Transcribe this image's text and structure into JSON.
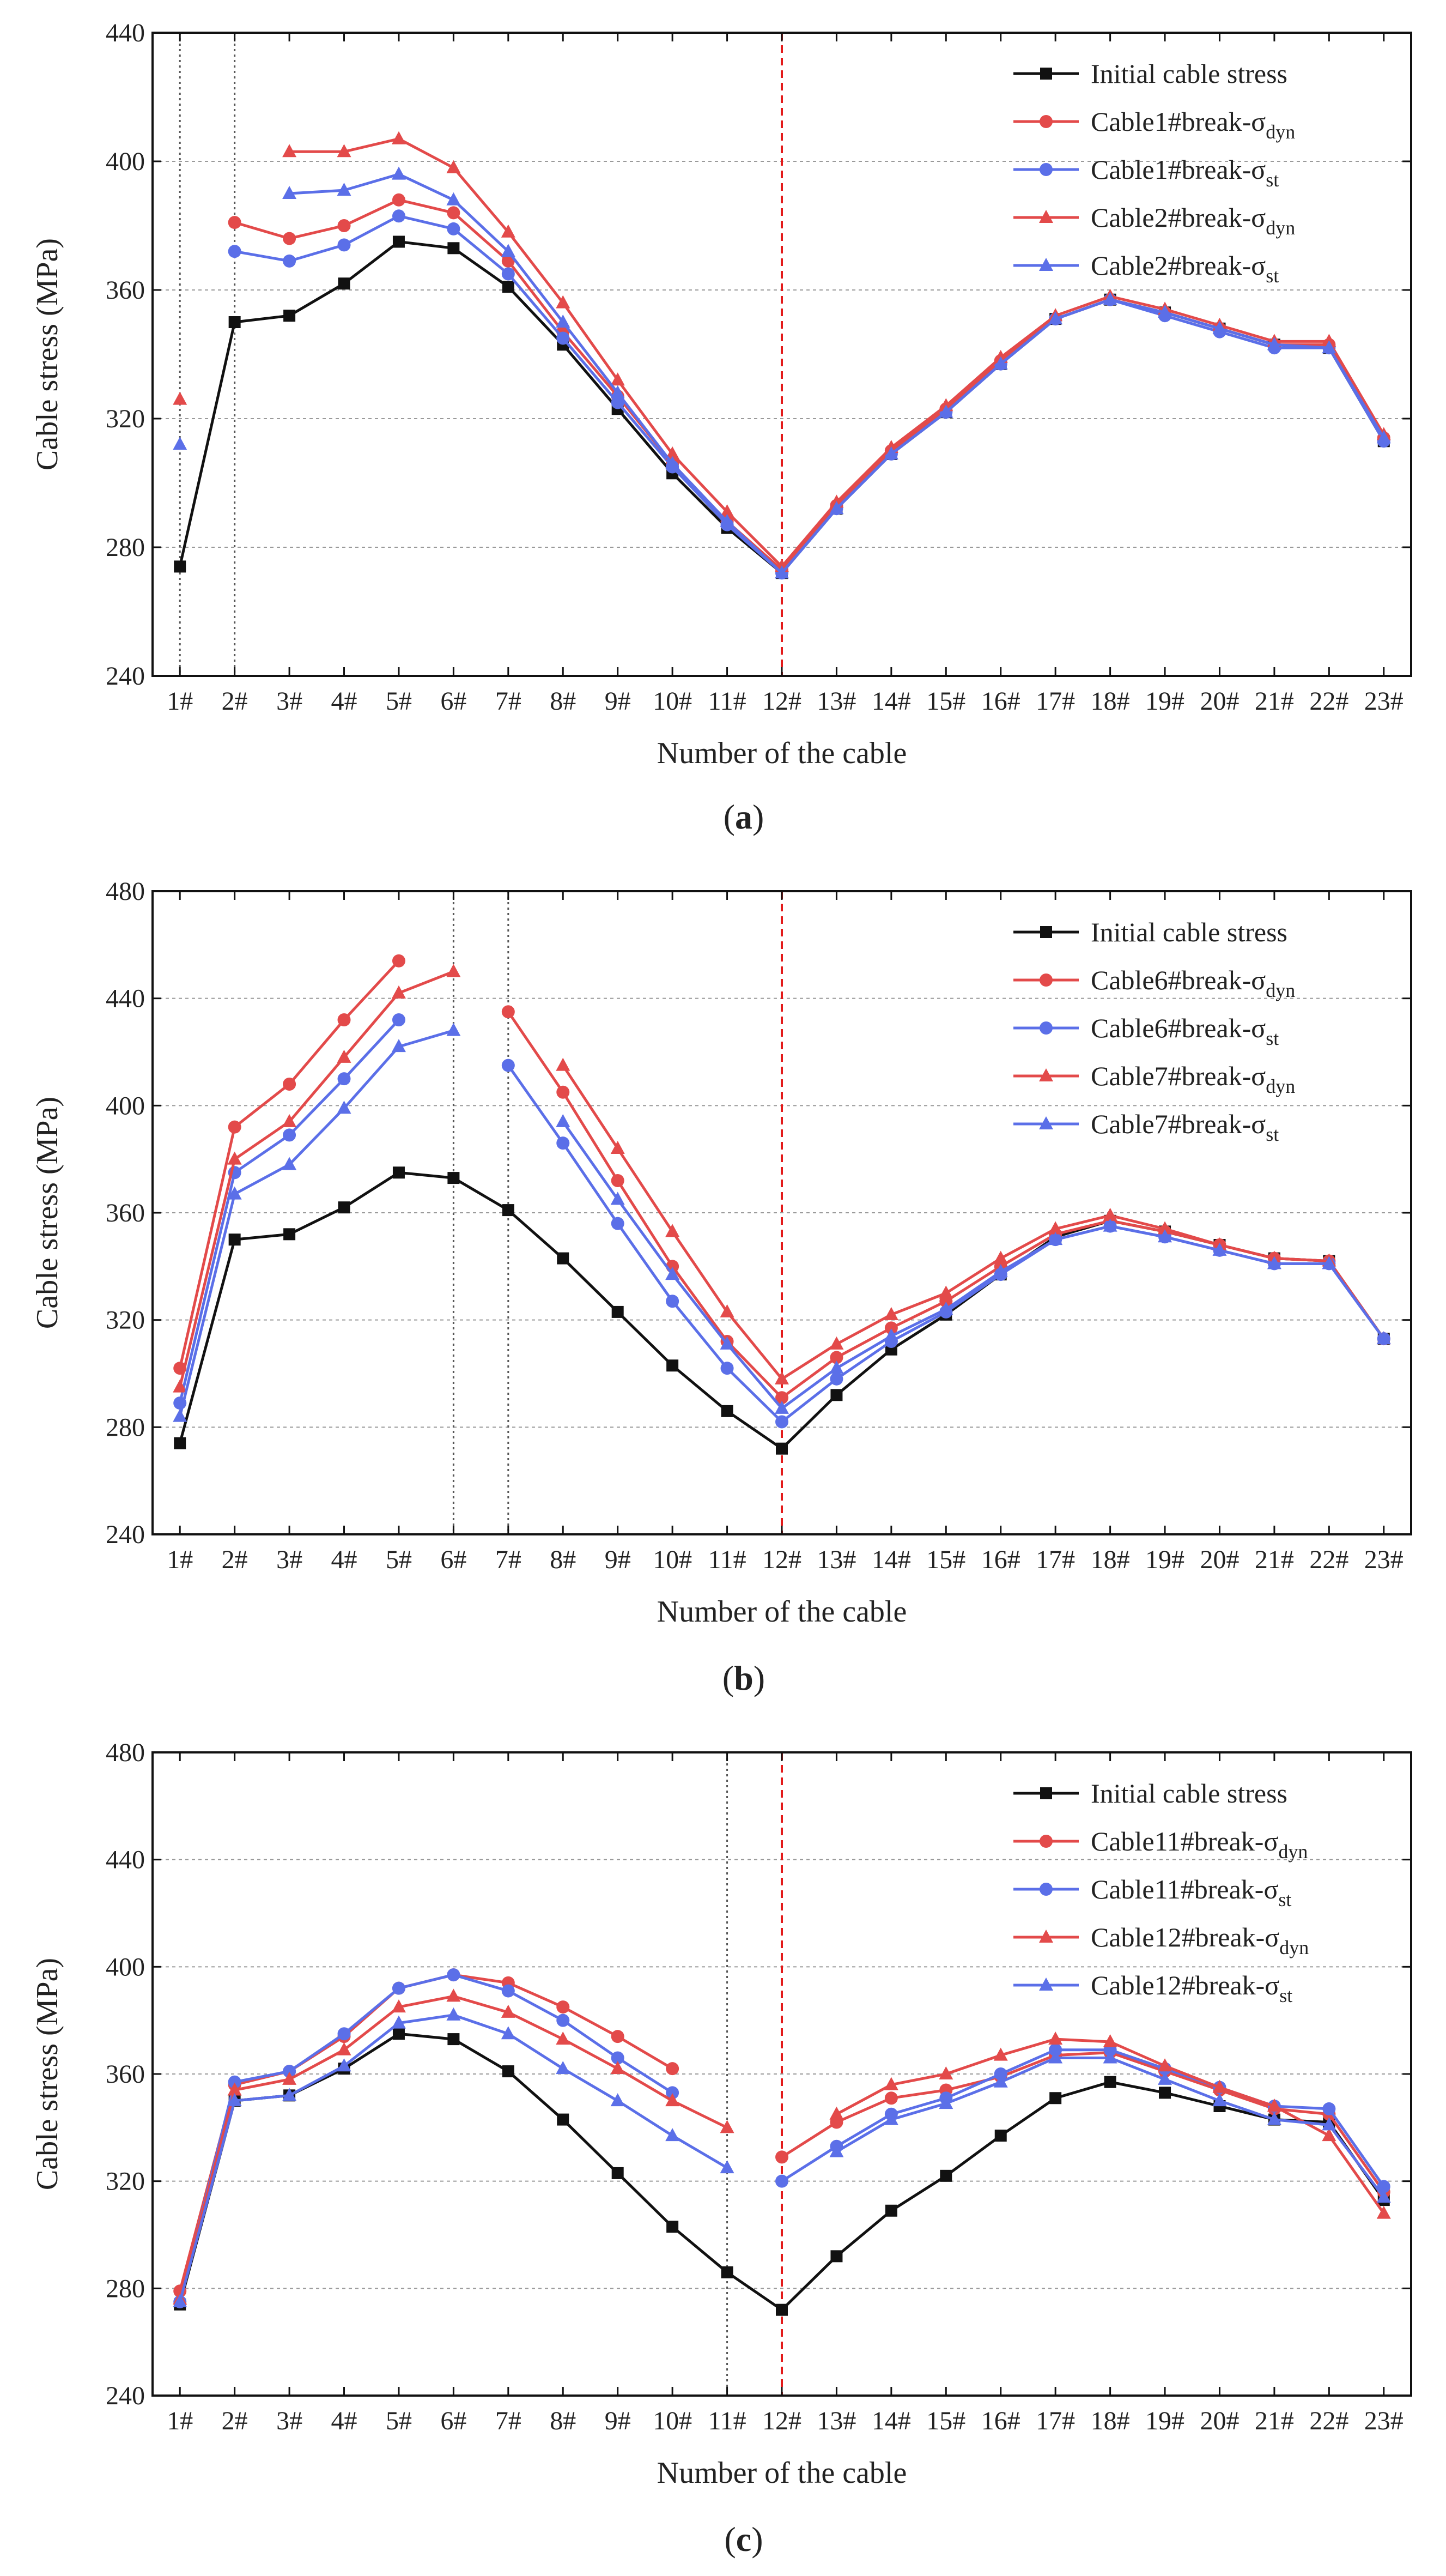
{
  "chart_data": [
    {
      "type": "line",
      "panel_label": "a",
      "xlabel": "Number of the cable",
      "ylabel": "Cable stress (MPa)",
      "ylim": [
        240,
        440
      ],
      "yticks": [
        240,
        280,
        320,
        360,
        400,
        440
      ],
      "categories": [
        "1#",
        "2#",
        "3#",
        "4#",
        "5#",
        "6#",
        "7#",
        "8#",
        "9#",
        "10#",
        "11#",
        "12#",
        "13#",
        "14#",
        "15#",
        "16#",
        "17#",
        "18#",
        "19#",
        "20#",
        "21#",
        "22#",
        "23#"
      ],
      "grid": "dashed",
      "legend_position": "top-right",
      "break_lines": [
        {
          "index": 0,
          "color": "#555555"
        },
        {
          "index": 1,
          "color": "#555555"
        }
      ],
      "red_line_index": 11,
      "series": [
        {
          "name": "Initial cable stress",
          "sub": "",
          "color": "#111111",
          "marker": "square",
          "values": [
            274,
            350,
            352,
            362,
            375,
            373,
            361,
            343,
            323,
            303,
            286,
            272,
            292,
            309,
            322,
            337,
            351,
            357,
            353,
            348,
            343,
            342,
            313
          ]
        },
        {
          "name": "Cable1#break-σ",
          "sub": "dyn",
          "color": "#e34a4a",
          "marker": "circle",
          "values": [
            null,
            381,
            376,
            380,
            388,
            384,
            369,
            347,
            327,
            306,
            288,
            273,
            293,
            310,
            323,
            338,
            351,
            357,
            353,
            348,
            343,
            343,
            314
          ]
        },
        {
          "name": "Cable1#break-σ",
          "sub": "st",
          "color": "#5b6fe8",
          "marker": "circle",
          "values": [
            null,
            372,
            369,
            374,
            383,
            379,
            365,
            345,
            325,
            305,
            287,
            272,
            292,
            309,
            322,
            337,
            351,
            357,
            352,
            347,
            342,
            342,
            313
          ]
        },
        {
          "name": "Cable2#break-σ",
          "sub": "dyn",
          "color": "#e34a4a",
          "marker": "triangle",
          "values": [
            326,
            null,
            403,
            403,
            407,
            398,
            378,
            356,
            332,
            309,
            291,
            274,
            294,
            311,
            324,
            339,
            352,
            358,
            354,
            349,
            344,
            344,
            315
          ]
        },
        {
          "name": "Cable2#break-σ",
          "sub": "st",
          "color": "#5b6fe8",
          "marker": "triangle",
          "values": [
            312,
            null,
            390,
            391,
            396,
            388,
            372,
            350,
            328,
            306,
            288,
            272,
            292,
            309,
            322,
            337,
            351,
            357,
            353,
            348,
            343,
            342,
            314
          ]
        }
      ]
    },
    {
      "type": "line",
      "panel_label": "b",
      "xlabel": "Number of the cable",
      "ylabel": "Cable stress (MPa)",
      "ylim": [
        240,
        480
      ],
      "yticks": [
        240,
        280,
        320,
        360,
        400,
        440,
        480
      ],
      "categories": [
        "1#",
        "2#",
        "3#",
        "4#",
        "5#",
        "6#",
        "7#",
        "8#",
        "9#",
        "10#",
        "11#",
        "12#",
        "13#",
        "14#",
        "15#",
        "16#",
        "17#",
        "18#",
        "19#",
        "20#",
        "21#",
        "22#",
        "23#"
      ],
      "grid": "dashed",
      "legend_position": "top-right",
      "break_lines": [
        {
          "index": 5,
          "color": "#555555"
        },
        {
          "index": 6,
          "color": "#555555"
        }
      ],
      "red_line_index": 11,
      "series": [
        {
          "name": "Initial cable stress",
          "sub": "",
          "color": "#111111",
          "marker": "square",
          "values": [
            274,
            350,
            352,
            362,
            375,
            373,
            361,
            343,
            323,
            303,
            286,
            272,
            292,
            309,
            322,
            337,
            351,
            357,
            353,
            348,
            343,
            342,
            313
          ]
        },
        {
          "name": "Cable6#break-σ",
          "sub": "dyn",
          "color": "#e34a4a",
          "marker": "circle",
          "values": [
            302,
            392,
            408,
            432,
            454,
            null,
            435,
            405,
            372,
            340,
            312,
            291,
            306,
            317,
            327,
            340,
            352,
            357,
            353,
            348,
            343,
            342,
            313
          ]
        },
        {
          "name": "Cable6#break-σ",
          "sub": "st",
          "color": "#5b6fe8",
          "marker": "circle",
          "values": [
            289,
            375,
            389,
            410,
            432,
            null,
            415,
            386,
            356,
            327,
            302,
            282,
            298,
            312,
            323,
            337,
            350,
            355,
            351,
            346,
            341,
            341,
            313
          ]
        },
        {
          "name": "Cable7#break-σ",
          "sub": "dyn",
          "color": "#e34a4a",
          "marker": "triangle",
          "values": [
            295,
            380,
            394,
            418,
            442,
            450,
            null,
            415,
            384,
            353,
            323,
            298,
            311,
            322,
            330,
            343,
            354,
            359,
            354,
            348,
            343,
            342,
            313
          ]
        },
        {
          "name": "Cable7#break-σ",
          "sub": "st",
          "color": "#5b6fe8",
          "marker": "triangle",
          "values": [
            284,
            367,
            378,
            399,
            422,
            428,
            null,
            394,
            365,
            337,
            311,
            287,
            302,
            314,
            324,
            338,
            350,
            355,
            351,
            346,
            341,
            341,
            313
          ]
        }
      ]
    },
    {
      "type": "line",
      "panel_label": "c",
      "xlabel": "Number of the cable",
      "ylabel": "Cable stress (MPa)",
      "ylim": [
        240,
        480
      ],
      "yticks": [
        240,
        280,
        320,
        360,
        400,
        440,
        480
      ],
      "categories": [
        "1#",
        "2#",
        "3#",
        "4#",
        "5#",
        "6#",
        "7#",
        "8#",
        "9#",
        "10#",
        "11#",
        "12#",
        "13#",
        "14#",
        "15#",
        "16#",
        "17#",
        "18#",
        "19#",
        "20#",
        "21#",
        "22#",
        "23#"
      ],
      "grid": "dashed",
      "legend_position": "top-right",
      "break_lines": [
        {
          "index": 10,
          "color": "#555555"
        }
      ],
      "red_line_index": 11,
      "series": [
        {
          "name": "Initial cable stress",
          "sub": "",
          "color": "#111111",
          "marker": "square",
          "values": [
            274,
            350,
            352,
            362,
            375,
            373,
            361,
            343,
            323,
            303,
            286,
            272,
            292,
            309,
            322,
            337,
            351,
            357,
            353,
            348,
            343,
            342,
            313
          ]
        },
        {
          "name": "Cable11#break-σ",
          "sub": "dyn",
          "color": "#e34a4a",
          "marker": "circle",
          "values": [
            279,
            356,
            361,
            374,
            392,
            397,
            394,
            385,
            374,
            362,
            null,
            329,
            342,
            351,
            354,
            359,
            367,
            368,
            361,
            354,
            347,
            345,
            316
          ]
        },
        {
          "name": "Cable11#break-σ",
          "sub": "st",
          "color": "#5b6fe8",
          "marker": "circle",
          "values": [
            275,
            357,
            361,
            375,
            392,
            397,
            391,
            380,
            366,
            353,
            null,
            320,
            333,
            345,
            351,
            360,
            369,
            369,
            362,
            355,
            348,
            347,
            318
          ]
        },
        {
          "name": "Cable12#break-σ",
          "sub": "dyn",
          "color": "#e34a4a",
          "marker": "triangle",
          "values": [
            276,
            354,
            358,
            369,
            385,
            389,
            383,
            373,
            362,
            350,
            340,
            null,
            345,
            356,
            360,
            367,
            373,
            372,
            363,
            355,
            348,
            337,
            308
          ]
        },
        {
          "name": "Cable12#break-σ",
          "sub": "st",
          "color": "#5b6fe8",
          "marker": "triangle",
          "values": [
            275,
            350,
            352,
            363,
            379,
            382,
            375,
            362,
            350,
            337,
            325,
            null,
            331,
            343,
            349,
            357,
            366,
            366,
            358,
            350,
            343,
            341,
            314
          ]
        }
      ]
    }
  ]
}
